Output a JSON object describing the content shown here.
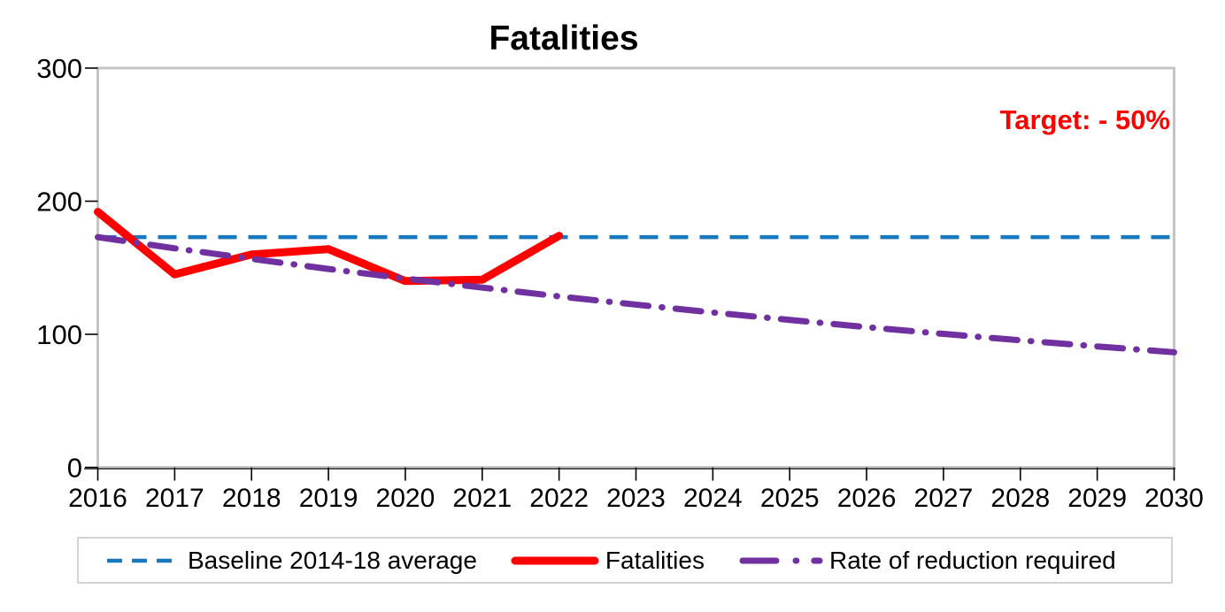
{
  "chart_data": {
    "type": "line",
    "title": "Fatalities",
    "annotation": "Target: - 50%",
    "annotation_color": "#ff0000",
    "xlabel": "",
    "ylabel": "",
    "x": [
      2016,
      2017,
      2018,
      2019,
      2020,
      2021,
      2022,
      2023,
      2024,
      2025,
      2026,
      2027,
      2028,
      2029,
      2030
    ],
    "y_ticks": [
      0,
      100,
      200,
      300
    ],
    "ylim": [
      0,
      300
    ],
    "xlim": [
      2016,
      2030
    ],
    "grid": false,
    "legend_position": "bottom",
    "series": [
      {
        "name": "Baseline 2014-18 average",
        "color": "#1878be",
        "style": "dashed",
        "x": [
          2016,
          2030
        ],
        "values": [
          173,
          173
        ]
      },
      {
        "name": "Fatalities",
        "color": "#ff0000",
        "style": "solid",
        "x": [
          2016,
          2017,
          2018,
          2019,
          2020,
          2021,
          2022
        ],
        "values": [
          192,
          145,
          160,
          164,
          140,
          141,
          174
        ]
      },
      {
        "name": "Rate of reduction required",
        "color": "#7030a0",
        "style": "dash-dot",
        "x": [
          2016,
          2017,
          2018,
          2019,
          2020,
          2021,
          2022,
          2023,
          2024,
          2025,
          2026,
          2027,
          2028,
          2029,
          2030
        ],
        "values": [
          173,
          164.6,
          156.7,
          149.1,
          141.9,
          135.1,
          128.5,
          122.3,
          116.4,
          110.8,
          105.4,
          100.3,
          95.5,
          90.9,
          86.5
        ]
      }
    ]
  }
}
